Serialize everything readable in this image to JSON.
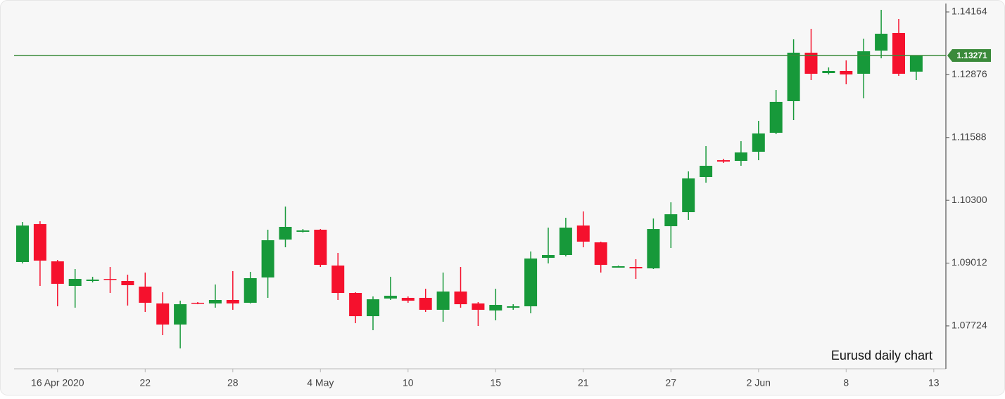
{
  "chart_data": {
    "type": "candlestick",
    "annotation": "Eurusd daily chart",
    "categories": [
      null,
      null,
      "16 Apr 2020",
      null,
      null,
      null,
      null,
      "22",
      null,
      null,
      null,
      null,
      "28",
      null,
      null,
      null,
      null,
      "4 May",
      null,
      null,
      null,
      null,
      "10",
      null,
      null,
      null,
      null,
      "15",
      null,
      null,
      null,
      null,
      "21",
      null,
      null,
      null,
      null,
      "27",
      null,
      null,
      null,
      null,
      "2 Jun",
      null,
      null,
      null,
      null,
      "8",
      null,
      null,
      null,
      null,
      "13"
    ],
    "open": [
      1.09034,
      1.09812,
      1.09048,
      1.08544,
      1.08645,
      1.08688,
      1.08645,
      1.0853,
      1.08184,
      1.07752,
      1.08198,
      1.08184,
      1.08256,
      1.08198,
      1.08717,
      1.09495,
      1.09654,
      1.09697,
      1.08962,
      1.084,
      1.07924,
      1.08285,
      1.08299,
      1.08299,
      1.08054,
      1.08429,
      1.08184,
      1.0804,
      1.08097,
      1.08126,
      1.0912,
      1.09178,
      1.09783,
      1.09438,
      1.08919,
      1.08933,
      1.08904,
      1.09769,
      1.10057,
      1.10778,
      1.11123,
      1.11109,
      1.11296,
      1.11685,
      1.12334,
      1.13328,
      1.1291,
      1.12954,
      1.12896,
      1.13371,
      1.13732,
      1.12939,
      null
    ],
    "high": [
      1.09855,
      1.0987,
      1.09077,
      1.0889,
      1.08731,
      1.08933,
      1.08775,
      1.08818,
      1.08414,
      1.08241,
      1.08213,
      1.08573,
      1.08847,
      1.08832,
      1.09697,
      1.10172,
      1.09711,
      1.09711,
      1.09221,
      1.08414,
      1.08328,
      1.08731,
      1.08328,
      1.08486,
      1.08818,
      1.08933,
      1.08213,
      1.08486,
      1.08169,
      1.0925,
      1.0974,
      1.09942,
      1.10072,
      1.09452,
      1.08962,
      1.09092,
      1.09927,
      1.10259,
      1.10893,
      1.11412,
      1.11152,
      1.11513,
      1.1193,
      1.12564,
      1.13602,
      1.13818,
      1.13026,
      1.1317,
      1.13616,
      1.14207,
      1.1402,
      1.13256,
      null
    ],
    "low": [
      1.09005,
      1.08544,
      1.08126,
      1.08097,
      1.08616,
      1.084,
      1.08141,
      1.08011,
      1.07535,
      1.07262,
      1.08169,
      1.08097,
      1.08054,
      1.08184,
      1.08299,
      1.09337,
      1.09639,
      1.08933,
      1.08256,
      1.0778,
      1.07636,
      1.08256,
      1.08198,
      1.08011,
      1.07809,
      1.08097,
      1.07723,
      1.07838,
      1.08054,
      1.07982,
      1.09005,
      1.09149,
      1.09337,
      1.08818,
      1.08919,
      1.08688,
      1.0889,
      1.09322,
      1.09899,
      1.10662,
      1.11066,
      1.11008,
      1.11123,
      1.11657,
      1.11945,
      1.12766,
      1.12882,
      1.1268,
      1.12392,
      1.13213,
      1.12853,
      1.12766,
      null
    ],
    "close": [
      1.09783,
      1.09063,
      1.08587,
      1.08688,
      1.08674,
      1.08674,
      1.08559,
      1.08198,
      1.07752,
      1.08169,
      1.08184,
      1.08256,
      1.08184,
      1.08703,
      1.09481,
      1.09755,
      1.09682,
      1.08976,
      1.084,
      1.07924,
      1.0827,
      1.08342,
      1.08241,
      1.08054,
      1.08429,
      1.08169,
      1.08054,
      1.08155,
      1.08126,
      1.09106,
      1.09178,
      1.0974,
      1.09452,
      1.08976,
      1.08948,
      1.08904,
      1.09711,
      1.10014,
      1.10749,
      1.11008,
      1.11095,
      1.11282,
      1.11671,
      1.1232,
      1.13328,
      1.12896,
      1.12954,
      1.12882,
      1.13357,
      1.13717,
      1.12896,
      1.13271,
      null
    ],
    "up_color": "#17993a",
    "down_color": "#f5112d",
    "current_price": 1.13271,
    "current_price_color": "#3a8a3a",
    "ylim": [
      1.06844,
      1.14337
    ],
    "yticks": [
      1.07724,
      1.09012,
      {
        "value": 1.103,
        "label": "1.10300"
      },
      1.11588,
      1.12876,
      1.14164
    ]
  }
}
